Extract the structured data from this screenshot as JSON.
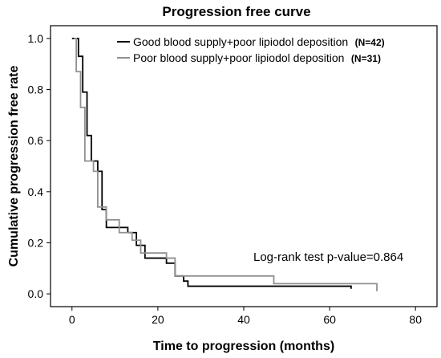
{
  "chart_data": {
    "type": "line",
    "step": true,
    "title": "Progression free curve",
    "xlabel": "Time to progression (months)",
    "ylabel": "Cumulative progression free rate",
    "xlim": [
      -5,
      85
    ],
    "ylim": [
      -0.05,
      1.05
    ],
    "x_ticks": [
      0,
      20,
      40,
      60,
      80
    ],
    "y_ticks": [
      0.0,
      0.2,
      0.4,
      0.6,
      0.8,
      1.0
    ],
    "x_tick_labels": [
      "0",
      "20",
      "40",
      "60",
      "80"
    ],
    "y_tick_labels": [
      "0.0",
      "0.2",
      "0.4",
      "0.6",
      "0.8",
      "1.0"
    ],
    "grid": false,
    "legend_position": "top-right",
    "annotation": "Log-rank test p-value=0.864",
    "series": [
      {
        "name": "Good blood supply+poor lipiodol deposition",
        "n_label": "(N=42)",
        "color": "#000000",
        "x": [
          0,
          1.5,
          2.5,
          3.5,
          4.5,
          6,
          7,
          8,
          10,
          13,
          15,
          17,
          22,
          24,
          26,
          27,
          65
        ],
        "y": [
          1.0,
          0.93,
          0.79,
          0.62,
          0.52,
          0.48,
          0.33,
          0.26,
          0.26,
          0.24,
          0.19,
          0.14,
          0.12,
          0.07,
          0.05,
          0.03,
          0.02
        ]
      },
      {
        "name": "Poor blood supply+poor lipiodol deposition",
        "n_label": "(N=31)",
        "color": "#909090",
        "x": [
          0.5,
          1,
          2,
          3,
          5,
          6,
          8,
          11,
          14,
          16,
          22,
          24,
          47,
          71
        ],
        "y": [
          1.0,
          0.87,
          0.73,
          0.52,
          0.48,
          0.34,
          0.29,
          0.24,
          0.21,
          0.16,
          0.14,
          0.07,
          0.04,
          0.01
        ]
      }
    ]
  }
}
